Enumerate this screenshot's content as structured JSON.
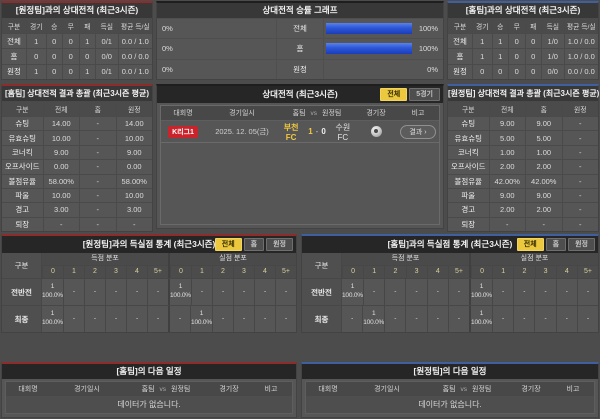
{
  "colors": {
    "accent_home_red": "#8e2b2b",
    "accent_away_blue": "#3f5f9e",
    "bar_blue": "#2b57d8",
    "tab_active_yellow": "#ecc83f",
    "league_badge_red": "#c9232b",
    "home_highlight_yellow": "#f2c93e"
  },
  "h2h_home": {
    "title": "[원정팀]과의 상대전적 (최근3시즌)",
    "columns": [
      "구분",
      "경기",
      "승",
      "무",
      "패",
      "득실",
      "평균 득/실"
    ],
    "rows": [
      {
        "label": "전체",
        "v": [
          "1",
          "0",
          "0",
          "1",
          "0/1",
          "0.0 / 1.0"
        ]
      },
      {
        "label": "홈",
        "v": [
          "0",
          "0",
          "0",
          "0",
          "0/0",
          "0.0 / 0.0"
        ]
      },
      {
        "label": "원정",
        "v": [
          "1",
          "0",
          "0",
          "1",
          "0/1",
          "0.0 / 1.0"
        ]
      }
    ]
  },
  "graph": {
    "title": "상대전적 승률 그래프",
    "rows": [
      {
        "left_value": "0%",
        "left_width": "0%",
        "label": "전체",
        "right_width": "100%",
        "right_value": "100%"
      },
      {
        "left_value": "0%",
        "left_width": "0%",
        "label": "홈",
        "right_width": "100%",
        "right_value": "100%"
      },
      {
        "left_value": "0%",
        "left_width": "0%",
        "label": "원정",
        "right_width": "0%",
        "right_value": "0%"
      }
    ]
  },
  "h2h_away": {
    "title": "[홈팀]과의 상대전적 (최근3시즌)",
    "columns": [
      "구분",
      "경기",
      "승",
      "무",
      "패",
      "득실",
      "평균 득/실"
    ],
    "rows": [
      {
        "label": "전체",
        "v": [
          "1",
          "1",
          "0",
          "0",
          "1/0",
          "1.0 / 0.0"
        ]
      },
      {
        "label": "홈",
        "v": [
          "1",
          "1",
          "0",
          "0",
          "1/0",
          "1.0 / 0.0"
        ]
      },
      {
        "label": "원정",
        "v": [
          "0",
          "0",
          "0",
          "0",
          "0/0",
          "0.0 / 0.0"
        ]
      }
    ]
  },
  "summary_home": {
    "title": "[홈팀] 상대전적 결과 총괄 (최근3시즌 평균)",
    "columns": [
      "구분",
      "전체",
      "홈",
      "원정"
    ],
    "rows": [
      {
        "label": "슈팅",
        "v": [
          "14.00",
          "-",
          "14.00"
        ]
      },
      {
        "label": "유효슈팅",
        "v": [
          "10.00",
          "-",
          "10.00"
        ]
      },
      {
        "label": "코너킥",
        "v": [
          "9.00",
          "-",
          "9.00"
        ]
      },
      {
        "label": "오프사이드",
        "v": [
          "0.00",
          "-",
          "0.00"
        ]
      },
      {
        "label": "볼점유율",
        "v": [
          "58.00%",
          "-",
          "58.00%"
        ]
      },
      {
        "label": "파울",
        "v": [
          "10.00",
          "-",
          "10.00"
        ]
      },
      {
        "label": "경고",
        "v": [
          "3.00",
          "-",
          "3.00"
        ]
      },
      {
        "label": "퇴장",
        "v": [
          "-",
          "-",
          "-"
        ]
      }
    ]
  },
  "matches": {
    "title": "상대전적 (최근3시즌)",
    "tabs": [
      {
        "label": "전체",
        "active": true
      },
      {
        "label": "5경기",
        "active": false
      }
    ],
    "columns": {
      "league": "대회명",
      "datetime": "경기일시",
      "home": "홈팀",
      "vs": "vs",
      "away": "원정팀",
      "stadium": "경기장",
      "note": "비고"
    },
    "row": {
      "league": "K리그1",
      "datetime": "2025. 12. 05(금)",
      "home_team": "부천FC",
      "home_score": "1",
      "separator": "-",
      "away_score": "0",
      "away_team": "수원FC",
      "stadium_icon": "stadium-icon",
      "note_button": "결과 ›"
    }
  },
  "summary_away": {
    "title": "[원정팀] 상대전적 결과 총괄 (최근3시즌 평균)",
    "columns": [
      "구분",
      "전체",
      "홈",
      "원정"
    ],
    "rows": [
      {
        "label": "슈팅",
        "v": [
          "9.00",
          "9.00",
          "-"
        ]
      },
      {
        "label": "유효슈팅",
        "v": [
          "5.00",
          "5.00",
          "-"
        ]
      },
      {
        "label": "코너킥",
        "v": [
          "1.00",
          "1.00",
          "-"
        ]
      },
      {
        "label": "오프사이드",
        "v": [
          "2.00",
          "2.00",
          "-"
        ]
      },
      {
        "label": "볼점유율",
        "v": [
          "42.00%",
          "42.00%",
          "-"
        ]
      },
      {
        "label": "파울",
        "v": [
          "9.00",
          "9.00",
          "-"
        ]
      },
      {
        "label": "경고",
        "v": [
          "2.00",
          "2.00",
          "-"
        ]
      },
      {
        "label": "퇴장",
        "v": [
          "-",
          "-",
          "-"
        ]
      }
    ]
  },
  "goals_home": {
    "title": "[원정팀]과의 득실점 통계 (최근3시즌)",
    "tabs": [
      "전체",
      "홈",
      "원정"
    ],
    "col_label": "구분",
    "group_scored": "득점 분포",
    "group_conceded": "실점 분포",
    "bins": [
      "0",
      "1",
      "2",
      "3",
      "4",
      "5+"
    ],
    "rows": [
      {
        "label": "전반전",
        "s": [
          "1\n100.0%",
          "-",
          "-",
          "-",
          "-",
          "-"
        ],
        "c": [
          "1\n100.0%",
          "-",
          "-",
          "-",
          "-",
          "-"
        ]
      },
      {
        "label": "최종",
        "s": [
          "1\n100.0%",
          "-",
          "-",
          "-",
          "-",
          "-"
        ],
        "c": [
          "-",
          "1\n100.0%",
          "-",
          "-",
          "-",
          "-"
        ]
      }
    ]
  },
  "goals_away": {
    "title": "[홈팀]과의 득실점 통계 (최근3시즌)",
    "tabs": [
      "전체",
      "홈",
      "원정"
    ],
    "col_label": "구분",
    "group_scored": "득점 분포",
    "group_conceded": "실점 분포",
    "bins": [
      "0",
      "1",
      "2",
      "3",
      "4",
      "5+"
    ],
    "rows": [
      {
        "label": "전반전",
        "s": [
          "1\n100.0%",
          "-",
          "-",
          "-",
          "-",
          "-"
        ],
        "c": [
          "1\n100.0%",
          "-",
          "-",
          "-",
          "-",
          "-"
        ]
      },
      {
        "label": "최종",
        "s": [
          "-",
          "1\n100.0%",
          "-",
          "-",
          "-",
          "-"
        ],
        "c": [
          "1\n100.0%",
          "-",
          "-",
          "-",
          "-",
          "-"
        ]
      }
    ]
  },
  "next_home": {
    "title": "[홈팀]의 다음 일정",
    "columns": {
      "league": "대회명",
      "datetime": "경기일시",
      "home": "홈팀",
      "vs": "vs",
      "away": "원정팀",
      "stadium": "경기장",
      "note": "비고"
    },
    "empty": "데이터가 없습니다."
  },
  "next_away": {
    "title": "[원정팀]의 다음 일정",
    "columns": {
      "league": "대회명",
      "datetime": "경기일시",
      "home": "홈팀",
      "vs": "vs",
      "away": "원정팀",
      "stadium": "경기장",
      "note": "비고"
    },
    "empty": "데이터가 없습니다."
  }
}
